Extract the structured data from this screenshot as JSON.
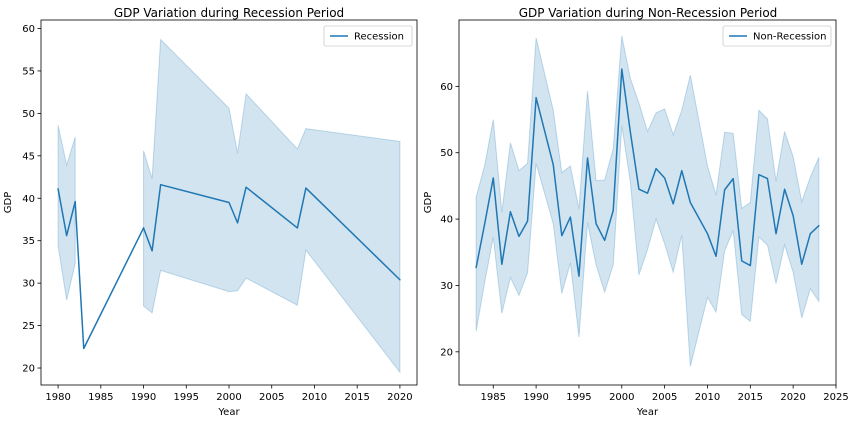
{
  "chart_data": [
    {
      "type": "line",
      "title": "GDP Variation during Recession Period",
      "xlabel": "Year",
      "ylabel": "GDP",
      "xlim": [
        1978,
        2022
      ],
      "ylim": [
        18,
        61
      ],
      "xticks": [
        1980,
        1985,
        1990,
        1995,
        2000,
        2005,
        2010,
        2015,
        2020
      ],
      "yticks": [
        20,
        25,
        30,
        35,
        40,
        45,
        50,
        55,
        60
      ],
      "grid": false,
      "legend": "upper right",
      "color": "#1f77b4",
      "band_color": "#1f77b4",
      "series": [
        {
          "name": "Recession",
          "segments": [
            {
              "x": [
                1980,
                1981,
                1982
              ],
              "y": [
                41.1,
                35.6,
                39.6
              ],
              "lower": [
                34.4,
                28.0,
                32.3
              ],
              "upper": [
                48.6,
                43.9,
                47.2
              ]
            },
            {
              "x": [
                1983
              ],
              "y": [
                22.3
              ],
              "lower": [
                22.3
              ],
              "upper": [
                22.3
              ]
            },
            {
              "x": [
                1990,
                1991,
                1992,
                2000,
                2001,
                2002,
                2008,
                2009,
                2020
              ],
              "y": [
                36.5,
                33.8,
                41.6,
                39.5,
                37.1,
                41.3,
                36.5,
                41.2,
                30.4
              ],
              "lower": [
                27.3,
                26.5,
                31.5,
                29.0,
                29.1,
                30.6,
                27.4,
                33.9,
                19.5
              ],
              "upper": [
                45.6,
                42.3,
                58.7,
                50.6,
                45.3,
                52.3,
                45.8,
                48.2,
                46.7
              ]
            }
          ]
        }
      ]
    },
    {
      "type": "line",
      "title": "GDP Variation during Non-Recession Period",
      "xlabel": "Year",
      "ylabel": "GDP",
      "xlim": [
        1981,
        2025
      ],
      "ylim": [
        15,
        70
      ],
      "xticks": [
        1985,
        1990,
        1995,
        2000,
        2005,
        2010,
        2015,
        2020,
        2025
      ],
      "yticks": [
        20,
        30,
        40,
        50,
        60
      ],
      "grid": false,
      "legend": "upper right",
      "color": "#1f77b4",
      "band_color": "#1f77b4",
      "series": [
        {
          "name": "Non-Recession",
          "segments": [
            {
              "x": [
                1983,
                1984,
                1985,
                1986,
                1987,
                1988,
                1989,
                1990,
                1992,
                1993,
                1994,
                1995,
                1996,
                1997,
                1998,
                1999,
                2000,
                2001,
                2002,
                2003,
                2004,
                2005,
                2006,
                2007,
                2008,
                2010,
                2011,
                2012,
                2013,
                2014,
                2015,
                2016,
                2017,
                2018,
                2019,
                2020,
                2021,
                2022,
                2023
              ],
              "y": [
                32.7,
                39.3,
                46.2,
                33.2,
                41.1,
                37.4,
                39.7,
                58.3,
                48.2,
                37.5,
                40.3,
                31.4,
                49.2,
                39.3,
                36.8,
                41.3,
                62.6,
                53.1,
                44.5,
                43.9,
                47.6,
                46.2,
                42.3,
                47.3,
                42.5,
                37.8,
                34.4,
                44.4,
                46.1,
                33.7,
                33.0,
                46.7,
                46.1,
                37.8,
                44.5,
                40.5,
                33.2,
                37.8,
                39.0
              ],
              "lower": [
                23.1,
                30.5,
                37.3,
                25.8,
                31.2,
                28.5,
                31.9,
                48.4,
                39.3,
                28.8,
                33.4,
                22.2,
                39.5,
                33.1,
                29.0,
                33.1,
                54.1,
                45.6,
                31.6,
                35.4,
                40.0,
                36.3,
                32.0,
                37.6,
                17.8,
                28.2,
                26.0,
                35.2,
                38.3,
                25.6,
                24.6,
                37.3,
                36.1,
                30.3,
                36.1,
                32.0,
                25.1,
                29.5,
                27.6
              ],
              "upper": [
                43.3,
                48.1,
                55.0,
                41.0,
                51.5,
                47.3,
                48.4,
                67.3,
                56.4,
                47.0,
                48.0,
                41.5,
                59.3,
                45.8,
                45.9,
                50.6,
                67.6,
                61.2,
                57.5,
                53.2,
                56.0,
                56.6,
                52.7,
                56.4,
                61.7,
                48.0,
                43.6,
                53.1,
                52.9,
                41.6,
                42.5,
                56.4,
                55.1,
                45.7,
                53.2,
                49.4,
                42.6,
                46.3,
                49.3
              ]
            }
          ]
        }
      ]
    }
  ]
}
